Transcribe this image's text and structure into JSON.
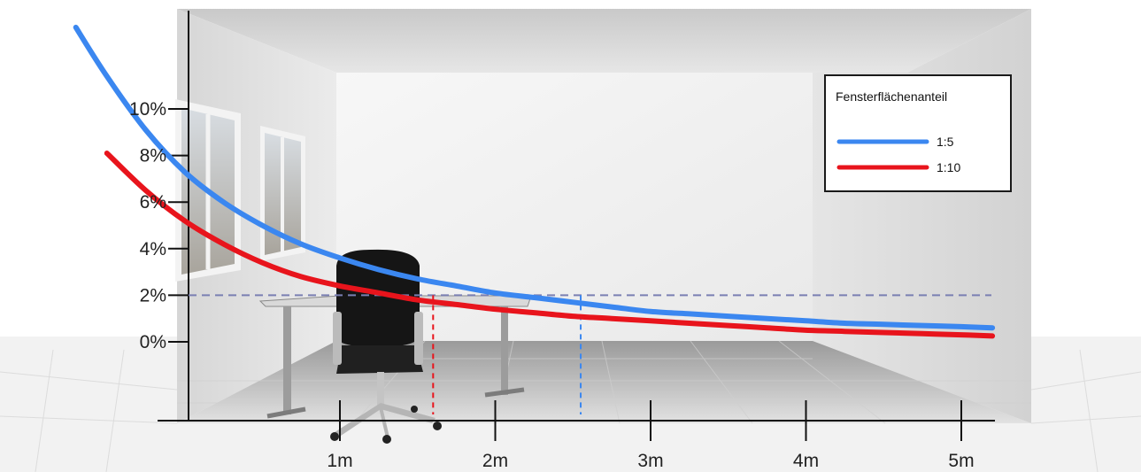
{
  "chart_data": {
    "type": "line",
    "title": "",
    "xlabel": "",
    "ylabel": "",
    "x_ticks": [
      "1m",
      "2m",
      "3m",
      "4m",
      "5m"
    ],
    "x_tick_values": [
      1,
      2,
      3,
      4,
      5
    ],
    "y_ticks": [
      "0%",
      "2%",
      "4%",
      "6%",
      "8%",
      "10%"
    ],
    "y_tick_values": [
      0,
      2,
      4,
      6,
      8,
      10
    ],
    "xlim": [
      -0.95,
      5.3
    ],
    "ylim": [
      -2.5,
      12.5
    ],
    "grid": false,
    "legend_title": "Fensterflächenanteil",
    "legend_position": "top-right",
    "series": [
      {
        "name": "1:5",
        "color": "#3b87f0",
        "x": [
          -0.7,
          -0.5,
          -0.25,
          0,
          0.25,
          0.5,
          0.75,
          1,
          1.25,
          1.5,
          1.75,
          2,
          2.25,
          2.5,
          2.75,
          3,
          3.25,
          3.5,
          3.75,
          4,
          4.25,
          4.5,
          4.75,
          5,
          5.2
        ],
        "y": [
          13.5,
          11.4,
          9.1,
          7.3,
          6.0,
          5.0,
          4.2,
          3.6,
          3.1,
          2.7,
          2.4,
          2.1,
          1.9,
          1.7,
          1.5,
          1.3,
          1.2,
          1.1,
          1.0,
          0.9,
          0.8,
          0.75,
          0.7,
          0.65,
          0.6
        ]
      },
      {
        "name": "1:10",
        "color": "#e8141c",
        "x": [
          -0.5,
          -0.25,
          0,
          0.25,
          0.5,
          0.75,
          1,
          1.25,
          1.5,
          1.75,
          2,
          2.25,
          2.5,
          2.75,
          3,
          3.25,
          3.5,
          3.75,
          4,
          4.25,
          4.5,
          4.75,
          5,
          5.2
        ],
        "y": [
          8.1,
          6.5,
          5.2,
          4.2,
          3.4,
          2.8,
          2.4,
          2.1,
          1.8,
          1.6,
          1.4,
          1.25,
          1.1,
          1.0,
          0.9,
          0.8,
          0.7,
          0.6,
          0.5,
          0.45,
          0.4,
          0.35,
          0.3,
          0.25
        ]
      }
    ],
    "reference_lines": {
      "horizontal_y": 2,
      "horizontal_color": "#7a7fb2",
      "vertical_markers": [
        {
          "x": 1.6,
          "color": "#e8141c",
          "series": "1:10"
        },
        {
          "x": 2.55,
          "color": "#3b87f0",
          "series": "1:5"
        }
      ]
    }
  }
}
